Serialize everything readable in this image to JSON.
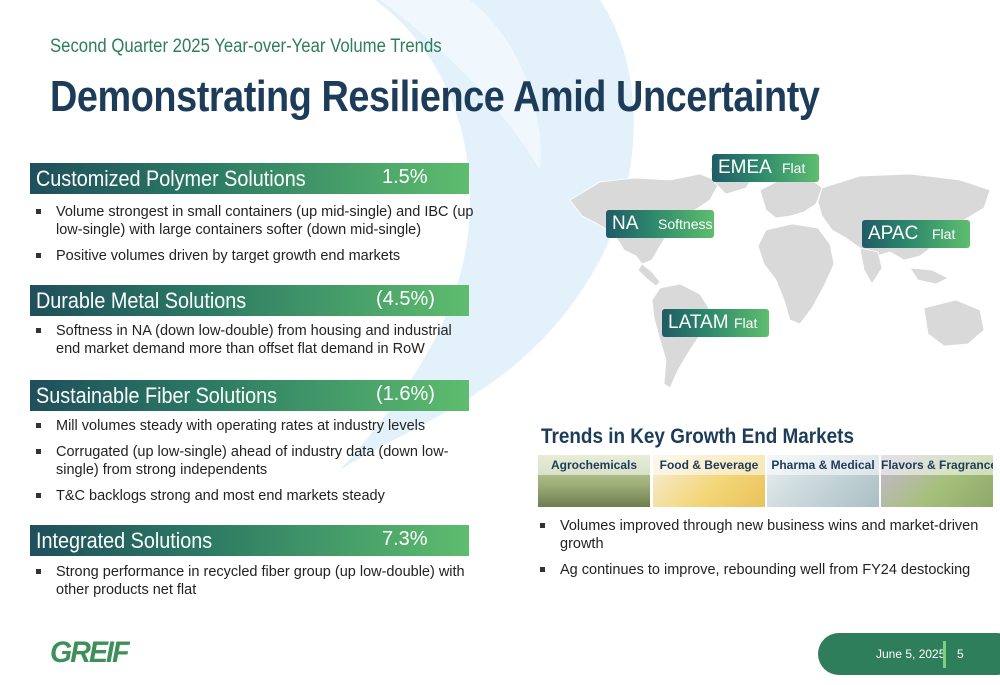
{
  "header": {
    "subtitle": "Second Quarter 2025 Year-over-Year Volume Trends",
    "title": "Demonstrating Resilience Amid Uncertainty"
  },
  "segments": [
    {
      "name": "Customized Polymer Solutions",
      "value": "1.5%",
      "bullets": [
        "Volume strongest in small containers (up mid-single) and IBC (up low-single) with large containers softer (down mid-single)",
        "Positive volumes driven by target growth end markets"
      ]
    },
    {
      "name": "Durable Metal Solutions",
      "value": "(4.5%)",
      "bullets": [
        "Softness in NA (down low-double) from housing and industrial end market demand more than offset flat demand in RoW"
      ]
    },
    {
      "name": "Sustainable Fiber Solutions",
      "value": "(1.6%)",
      "bullets": [
        "Mill volumes steady with operating rates at industry levels",
        "Corrugated (up low-single) ahead of industry data (down low-single) from strong independents",
        "T&C backlogs strong and most end markets steady"
      ]
    },
    {
      "name": "Integrated Solutions",
      "value": "7.3%",
      "bullets": [
        "Strong performance in recycled fiber group (up low-double) with other products net flat"
      ]
    }
  ],
  "regions": {
    "emea": {
      "name": "EMEA",
      "status": "Flat"
    },
    "na": {
      "name": "NA",
      "status": "Softness"
    },
    "apac": {
      "name": "APAC",
      "status": "Flat"
    },
    "latam": {
      "name": "LATAM",
      "status": "Flat"
    }
  },
  "trends": {
    "title": "Trends in Key Growth End Markets",
    "markets": [
      "Agrochemicals",
      "Food & Beverage",
      "Pharma & Medical",
      "Flavors & Fragrances"
    ],
    "bullets": [
      "Volumes improved through new business wins and market-driven growth",
      "Ag continues to improve, rebounding well from FY24 destocking"
    ]
  },
  "footer": {
    "logo": "GREIF",
    "date": "June 5, 2025",
    "page": "5"
  },
  "colors": {
    "title": "#1d3c5a",
    "subtitle": "#2e7d5b",
    "accent_green": "#5ebd6e",
    "swoosh": "#e8f4fb"
  }
}
